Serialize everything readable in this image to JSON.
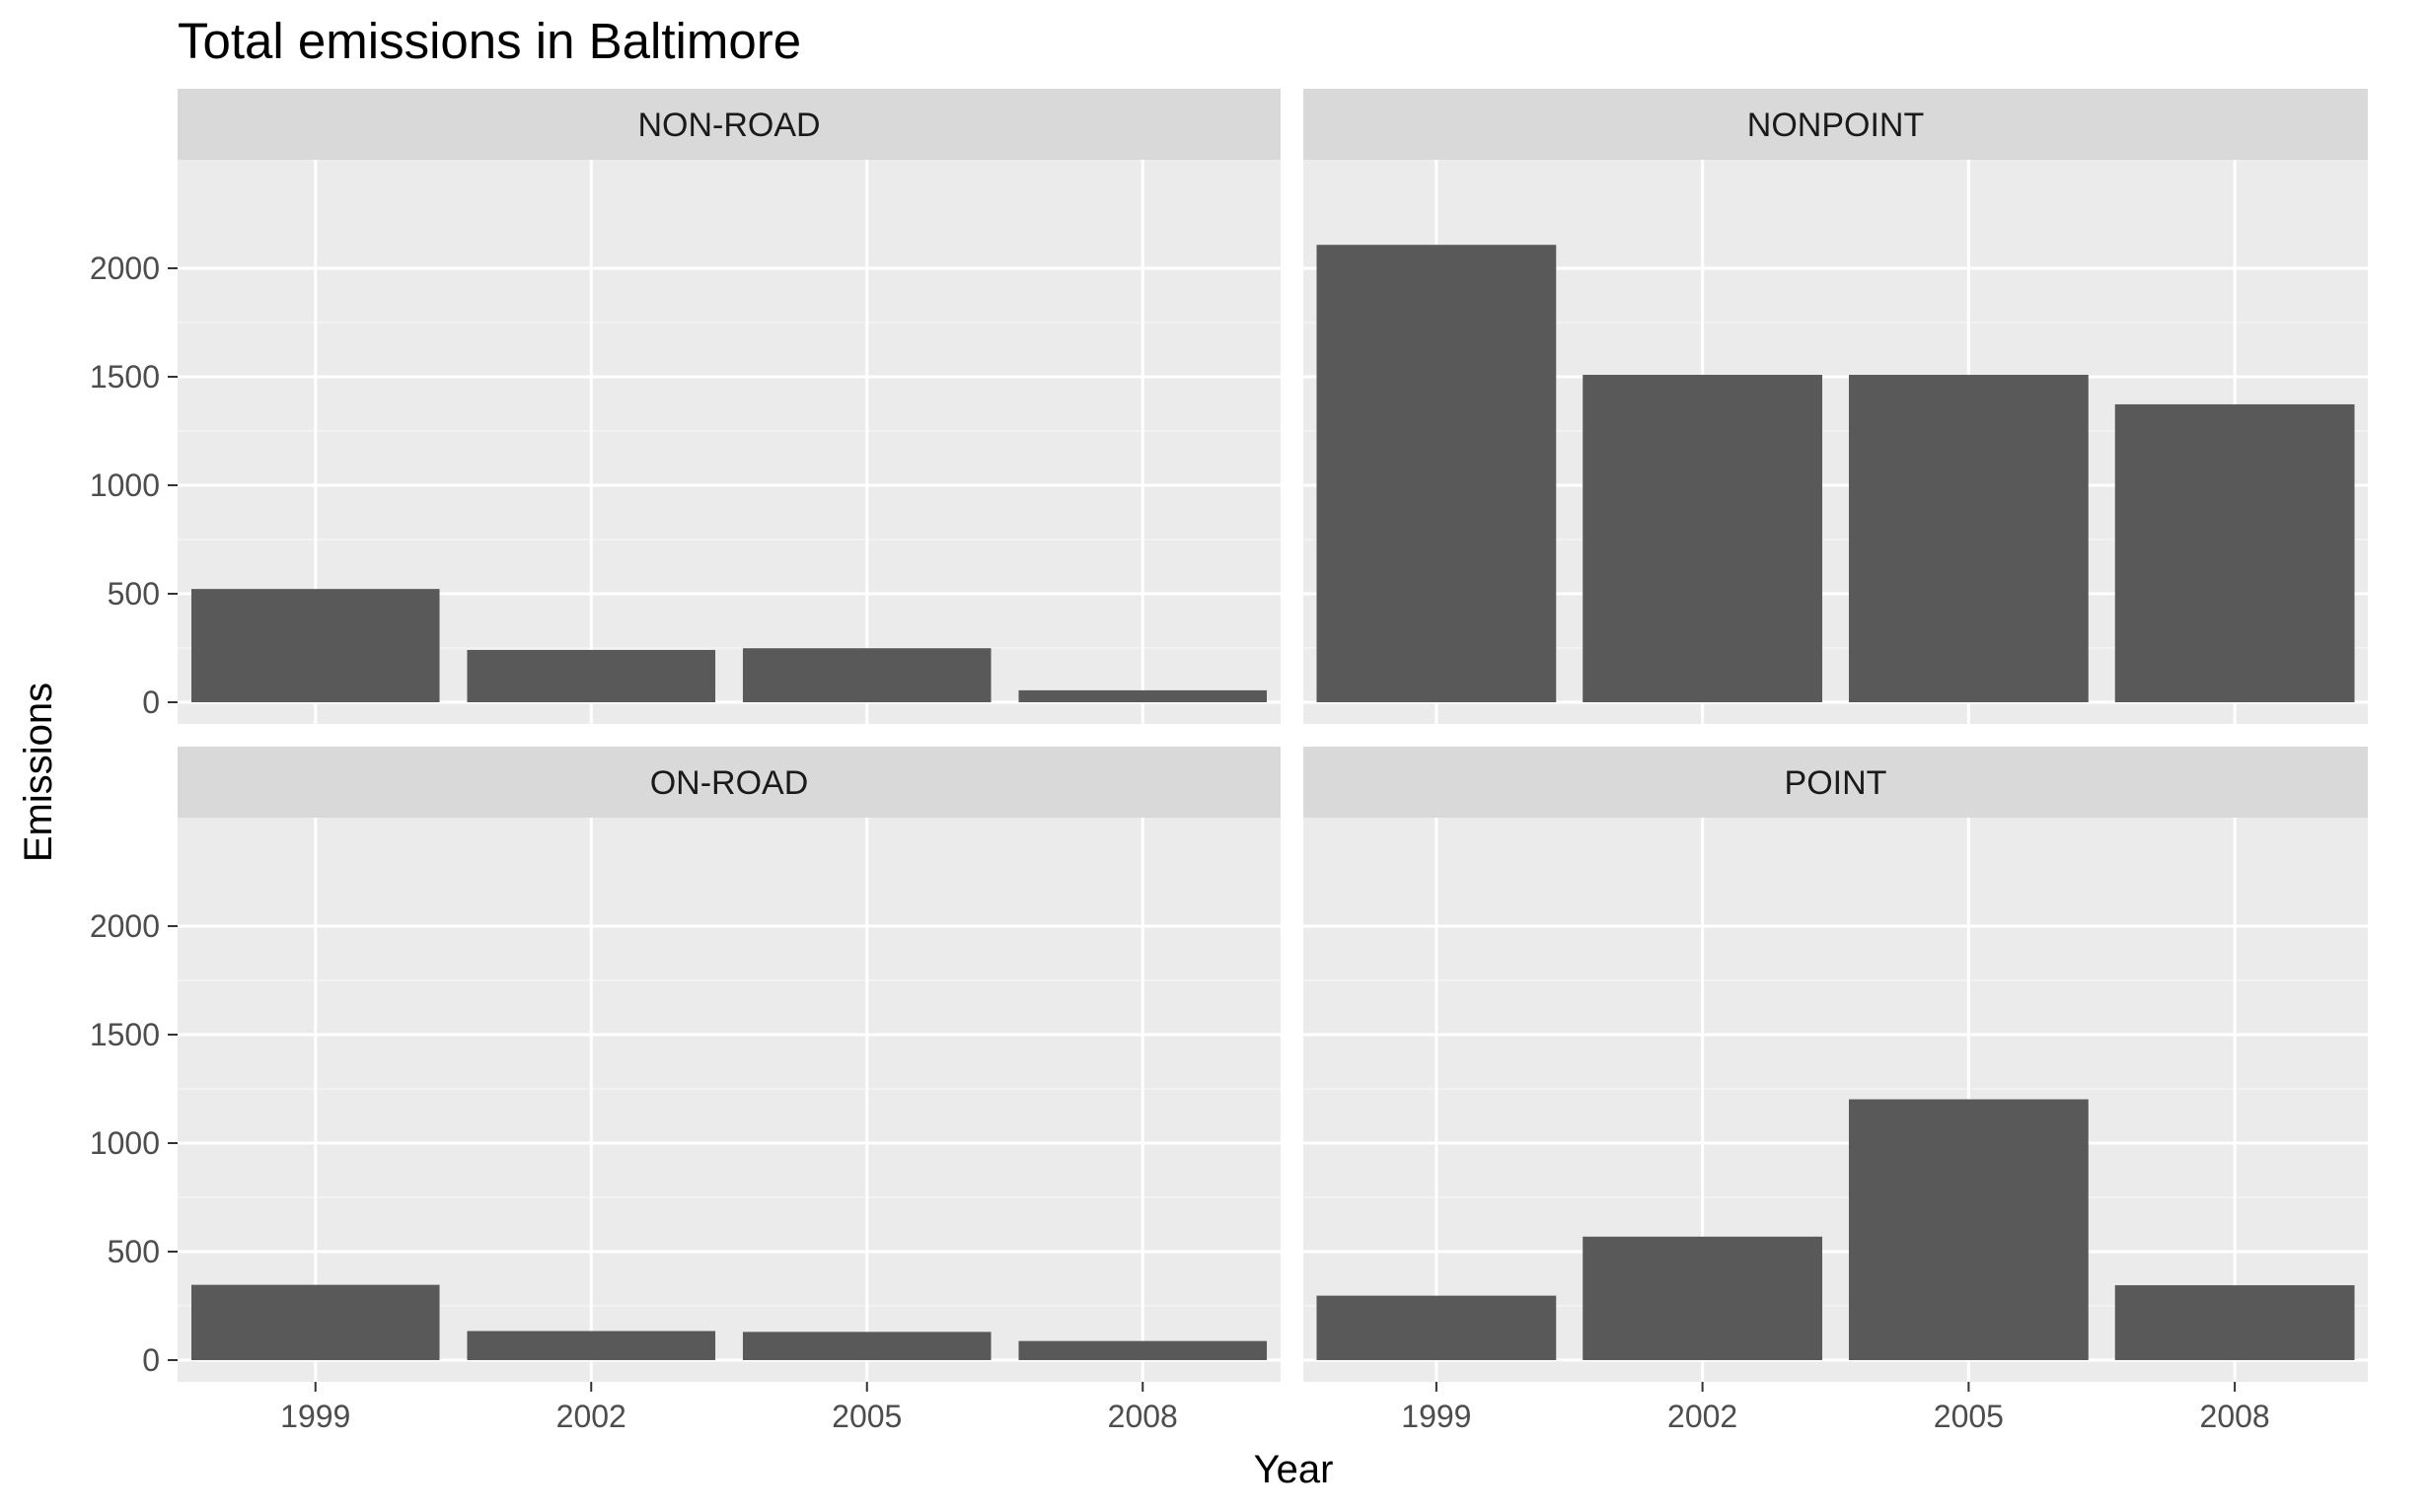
{
  "chart_data": {
    "type": "bar",
    "title": "Total emissions in Baltimore",
    "xlabel": "Year",
    "ylabel": "Emissions",
    "categories": [
      "1999",
      "2002",
      "2005",
      "2008"
    ],
    "ylim": [
      -100,
      2500
    ],
    "yticks": [
      0,
      500,
      1000,
      1500,
      2000
    ],
    "grid": true,
    "legend": "none",
    "facets": [
      {
        "name": "NON-ROAD",
        "values": [
          522,
          241,
          249,
          55
        ]
      },
      {
        "name": "NONPOINT",
        "values": [
          2108,
          1509,
          1509,
          1373
        ]
      },
      {
        "name": "ON-ROAD",
        "values": [
          347,
          134,
          130,
          88
        ]
      },
      {
        "name": "POINT",
        "values": [
          297,
          569,
          1202,
          345
        ]
      }
    ],
    "colors": {
      "bar": "#595959",
      "panel": "#ebebeb",
      "strip": "#d9d9d9",
      "grid_major": "#ffffff",
      "grid_minor": "#f5f5f5",
      "tick_text": "#4d4d4d"
    }
  }
}
